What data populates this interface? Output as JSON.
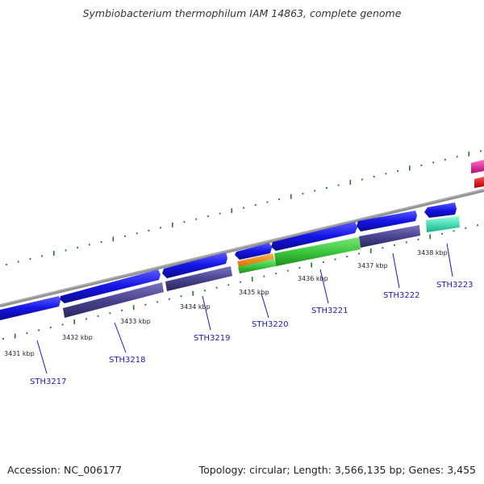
{
  "title": "Symbiobacterium thermophilum IAM 14863, complete genome",
  "footer": {
    "accession": "Accession: NC_006177",
    "summary": "Topology: circular; Length: 3,566,135 bp; Genes: 3,455"
  },
  "colors": {
    "backbone": "#808080",
    "tick": "#1f7a1f",
    "forward_cds": "#1414e6",
    "reverse_cds": "#4a4490",
    "orange": "#f08c14",
    "green": "#3cc83c",
    "cyan": "#28e6b4",
    "magenta": "#e61ea0",
    "red": "#f01414",
    "label": "#1a1ab4"
  },
  "kbp_labels": [
    "3431 kbp",
    "3432 kbp",
    "3433 kbp",
    "3434 kbp",
    "3435 kbp",
    "3436 kbp",
    "3437 kbp",
    "3438 kbp"
  ],
  "genes": [
    "STH3217",
    "STH3218",
    "STH3219",
    "STH3220",
    "STH3221",
    "STH3222",
    "STH3223"
  ]
}
